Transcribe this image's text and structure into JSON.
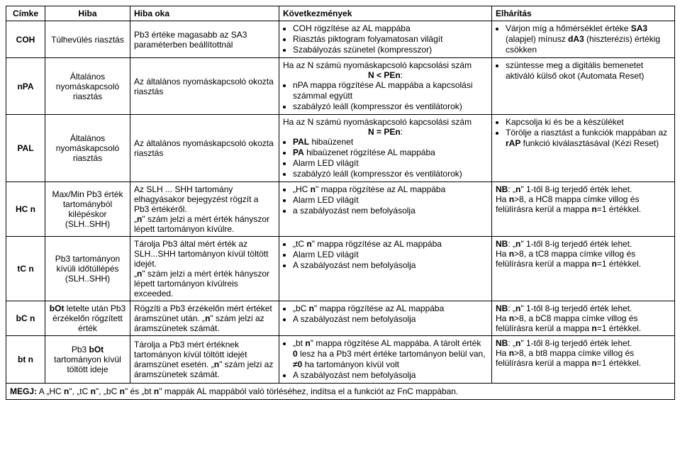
{
  "headers": {
    "label": "Címke",
    "error": "Hiba",
    "cause": "Hiba oka",
    "conseq": "Következmények",
    "remedy": "Elhárítás"
  },
  "rows": {
    "coh": {
      "label": "COH",
      "error": "Túlhevülés riasztás",
      "cause": "Pb3 értéke magasabb az SA3 paraméterben beállítottnál",
      "c1": "COH rögzítése az AL mappába",
      "c2": "Riasztás piktogram folyamatosan világít",
      "c3": "Szabályozás szünetel (kompresszor)",
      "r1a": "Várjon míg a hőmérséklet értéke ",
      "r1b": "SA3",
      "r1c": " (alapjel) mínusz ",
      "r1d": "dA3",
      "r1e": " (hiszterézis) értékig csökken"
    },
    "npa": {
      "label": "nPA",
      "error": "Általános nyomáskapcsoló riasztás",
      "cause": "Az általános nyomáskapcsoló okozta riasztás",
      "c0a": "Ha az N számú nyomáskapcsoló kapcsolási szám",
      "c0b": "N < PEn",
      "c0c": ":",
      "c1": "nPA mappa rögzítése AL mappába a kapcsolási számmal együtt",
      "c2": "szabályzó leáll (kompresszor és ventilátorok)",
      "r1": "szüntesse meg a digitális bemenetet aktiváló külső okot (Automata Reset)"
    },
    "pal": {
      "label": "PAL",
      "error": "Általános nyomáskapcsoló riasztás",
      "cause": "Az általános nyomáskapcsoló okozta riasztás",
      "c0a": "Ha az N számú nyomáskapcsoló kapcsolási szám",
      "c0b": "N = PEn",
      "c0c": ":",
      "c1a": "PAL",
      "c1b": " hibaüzenet",
      "c2a": "PA",
      "c2b": " hibaüzenet rögzítése AL mappába",
      "c3": "Alarm LED világít",
      "c4": "szabályzó leáll (kompresszor és ventilátorok)",
      "r1": "Kapcsolja ki és be a készüléket",
      "r2a": "Törölje a riasztást a funkciók mappában az ",
      "r2b": "rAP",
      "r2c": " funkció kiválasztásával (Kézi Reset)"
    },
    "hcn": {
      "label1": "HC ",
      "label2": "n",
      "error": "Max/Min Pb3 érték tartományból kilépéskor (SLH..SHH)",
      "cause1": "Az SLH ... SHH tartomány elhagyásakor bejegyzést rögzít a Pb3 értékéről.",
      "cause2a": "„",
      "cause2b": "n",
      "cause2c": "\" szám jelzi a mért érték hányszor lépett tartományon kívülre.",
      "c1a": "„HC ",
      "c1b": "n",
      "c1c": "\" mappa rögzítése az AL mappába",
      "c2": "Alarm LED világít",
      "c3": "a szabályozást nem befolyásolja",
      "r1a": "NB",
      "r1b": ": „",
      "r1c": "n",
      "r1d": "\" 1-től 8-ig terjedő érték lehet.",
      "r2a": "Ha ",
      "r2b": "n",
      "r2c": ">8, a HC8 mappa címke villog és felülírásra kerül a mappa ",
      "r2d": "n",
      "r2e": "=1 értékkel."
    },
    "tcn": {
      "label1": "tC ",
      "label2": "n",
      "error": "Pb3 tartományon kívüli időtúllépés (SLH..SHH)",
      "cause1": "Tárolja Pb3 által mért érték az SLH...SHH tartományon kívül töltött idejét.",
      "cause2a": "„",
      "cause2b": "n",
      "cause2c": "\" szám jelzi a mért érték hányszor lépett tartományon kívülreis exceeded.",
      "c1a": "„tC ",
      "c1b": "n",
      "c1c": "\" mappa rögzítése az AL mappába",
      "c2": "Alarm LED világít",
      "c3": "A szabályozást nem befolyásolja",
      "r1a": "NB",
      "r1b": ": „",
      "r1c": "n",
      "r1d": "\" 1-től 8-ig terjedő érték lehet.",
      "r2a": "Ha ",
      "r2b": "n",
      "r2c": ">8, a tC8 mappa címke villog és felülírásra kerül a mappa ",
      "r2d": "n",
      "r2e": "=1 értékkel."
    },
    "bcn": {
      "label1": "bC ",
      "label2": "n",
      "error1": "bOt",
      "error2": " letelte után Pb3 érzékelőn rögzített érték",
      "cause1": "Rögzíti a Pb3 érzékelőn mért értéket áramszünet után. „",
      "cause2": "n",
      "cause3": "\" szám jelzi az áramszünetek számát.",
      "c1a": "„bC ",
      "c1b": "n",
      "c1c": "\" mappa rögzítése az AL mappába",
      "c2": "A szabályozást nem befolyásolja",
      "r1a": "NB",
      "r1b": ": „",
      "r1c": "n",
      "r1d": "\" 1-től 8-ig terjedő érték lehet.",
      "r2a": "Ha ",
      "r2b": "n",
      "r2c": ">8, a bC8 mappa címke villog és felülírásra kerül a mappa ",
      "r2d": "n",
      "r2e": "=1 értékkel."
    },
    "btn": {
      "label1": "bt ",
      "label2": "n",
      "error1": "Pb3 ",
      "error2": "bOt",
      "error3": " tartományon kívül töltött ideje",
      "cause1": "Tárolja a Pb3 mért értéknek tartományon kívül töltött idejét áramszünet esetén. „",
      "cause2": "n",
      "cause3": "\" szám jelzi az áramszünetek számát.",
      "c1a": "„bt ",
      "c1b": "n",
      "c1c": "\" mappa rögzítése AL mappába. A tárolt érték ",
      "c1d": "0",
      "c1e": " lesz ha a Pb3 mért értéke tartományon belül van, ",
      "c1f": "≠0",
      "c1g": " ha tartományon kívül volt",
      "c2": "A szabályozást nem befolyásolja",
      "r1a": "NB",
      "r1b": ": „",
      "r1c": "n",
      "r1d": "\" 1-től 8-ig terjedő érték lehet.",
      "r2a": "Ha ",
      "r2b": "n",
      "r2c": ">8, a bt8 mappa címke villog és felülírásra kerül a mappa ",
      "r2d": "n",
      "r2e": "=1 értékkel."
    }
  },
  "note": {
    "a": "MEGJ:",
    "b": " A „HC ",
    "c": "n",
    "d": "\", „tC ",
    "e": "n",
    "f": "\", „bC ",
    "g": "n",
    "h": "\" és „bt ",
    "i": "n",
    "j": "\" mappák AL mappából való törléséhez, indítsa el a funkciót az FnC mappában."
  }
}
